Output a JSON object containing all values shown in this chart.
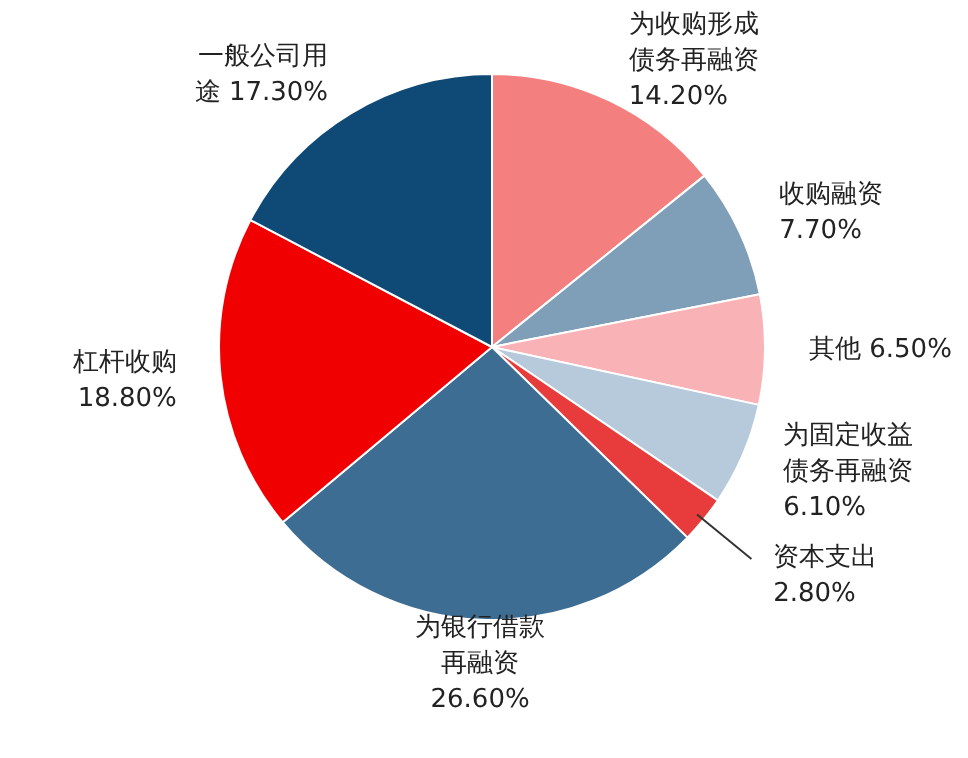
{
  "chart_data": {
    "type": "pie",
    "categories": [
      "为收购形成债务再融资",
      "收购融资",
      "其他",
      "为固定收益债务再融资",
      "资本支出",
      "为银行借款再融资",
      "杠杆收购",
      "一般公司用途"
    ],
    "values": [
      14.2,
      7.7,
      6.5,
      6.1,
      2.8,
      26.6,
      18.8,
      17.3
    ],
    "value_labels": [
      "14.20%",
      "7.70%",
      "6.50%",
      "6.10%",
      "2.80%",
      "26.60%",
      "18.80%",
      "17.30%"
    ],
    "colors": [
      "#f47f7f",
      "#7f9eb8",
      "#f9b3b6",
      "#b7cadb",
      "#e83b3b",
      "#3d6d92",
      "#f00000",
      "#0f4a76"
    ],
    "legend": false
  }
}
